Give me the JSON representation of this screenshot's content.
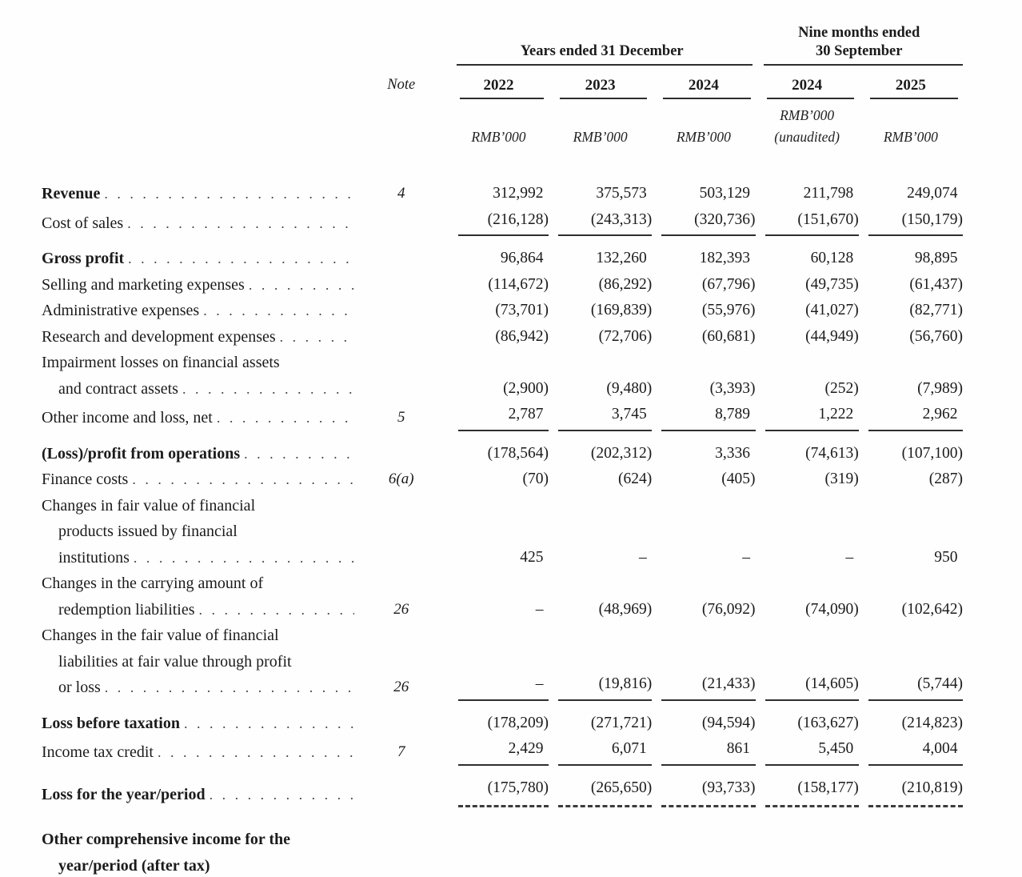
{
  "table": {
    "header": {
      "note_label": "Note",
      "group1_title": "Years ended 31 December",
      "group2_title_lines": [
        "Nine months ended",
        "30 September"
      ],
      "columns": [
        {
          "year": "2022",
          "unit": "RMB’000"
        },
        {
          "year": "2023",
          "unit": "RMB’000"
        },
        {
          "year": "2024",
          "unit": "RMB’000"
        },
        {
          "year": "2024",
          "unit": "RMB’000",
          "subnote": "(unaudited)"
        },
        {
          "year": "2025",
          "unit": "RMB’000"
        }
      ]
    },
    "rows": [
      {
        "label_lines": [
          {
            "text": "Revenue",
            "leader": true
          }
        ],
        "bold": true,
        "note": "4",
        "values": [
          "312,992",
          "375,573",
          "503,129",
          "211,798",
          "249,074"
        ],
        "rule": "none"
      },
      {
        "label_lines": [
          {
            "text": "Cost of sales",
            "leader": true
          }
        ],
        "bold": false,
        "note": "",
        "values": [
          "(216,128)",
          "(243,313)",
          "(320,736)",
          "(151,670)",
          "(150,179)"
        ],
        "rule": "single"
      },
      {
        "label_lines": [
          {
            "text": "Gross profit",
            "leader": true
          }
        ],
        "bold": true,
        "note": "",
        "values": [
          "96,864",
          "132,260",
          "182,393",
          "60,128",
          "98,895"
        ],
        "rule": "none"
      },
      {
        "label_lines": [
          {
            "text": "Selling and marketing expenses",
            "leader": true
          }
        ],
        "bold": false,
        "note": "",
        "values": [
          "(114,672)",
          "(86,292)",
          "(67,796)",
          "(49,735)",
          "(61,437)"
        ],
        "rule": "none"
      },
      {
        "label_lines": [
          {
            "text": "Administrative expenses",
            "leader": true
          }
        ],
        "bold": false,
        "note": "",
        "values": [
          "(73,701)",
          "(169,839)",
          "(55,976)",
          "(41,027)",
          "(82,771)"
        ],
        "rule": "none"
      },
      {
        "label_lines": [
          {
            "text": "Research and development expenses",
            "leader": true
          }
        ],
        "bold": false,
        "note": "",
        "values": [
          "(86,942)",
          "(72,706)",
          "(60,681)",
          "(44,949)",
          "(56,760)"
        ],
        "rule": "none"
      },
      {
        "label_lines": [
          {
            "text": "Impairment losses on financial assets"
          },
          {
            "text": "and contract assets",
            "indent": true,
            "leader": true
          }
        ],
        "bold": false,
        "note": "",
        "values": [
          "(2,900)",
          "(9,480)",
          "(3,393)",
          "(252)",
          "(7,989)"
        ],
        "rule": "none"
      },
      {
        "label_lines": [
          {
            "text": "Other income and loss, net",
            "leader": true
          }
        ],
        "bold": false,
        "note": "5",
        "values": [
          "2,787",
          "3,745",
          "8,789",
          "1,222",
          "2,962"
        ],
        "rule": "single"
      },
      {
        "label_lines": [
          {
            "text": "(Loss)/profit from operations",
            "leader": true
          }
        ],
        "bold": true,
        "note": "",
        "values": [
          "(178,564)",
          "(202,312)",
          "3,336",
          "(74,613)",
          "(107,100)"
        ],
        "rule": "none"
      },
      {
        "label_lines": [
          {
            "text": "Finance costs",
            "leader": true
          }
        ],
        "bold": false,
        "note": "6(a)",
        "values": [
          "(70)",
          "(624)",
          "(405)",
          "(319)",
          "(287)"
        ],
        "rule": "none"
      },
      {
        "label_lines": [
          {
            "text": "Changes in fair value of financial"
          },
          {
            "text": "products issued by financial",
            "indent": true
          },
          {
            "text": "institutions",
            "indent": true,
            "leader": true
          }
        ],
        "bold": false,
        "note": "",
        "values": [
          "425",
          "–",
          "–",
          "–",
          "950"
        ],
        "rule": "none"
      },
      {
        "label_lines": [
          {
            "text": "Changes in the carrying amount of"
          },
          {
            "text": "redemption liabilities",
            "indent": true,
            "leader": true
          }
        ],
        "bold": false,
        "note": "26",
        "values": [
          "–",
          "(48,969)",
          "(76,092)",
          "(74,090)",
          "(102,642)"
        ],
        "rule": "none"
      },
      {
        "label_lines": [
          {
            "text": "Changes in the fair value of financial"
          },
          {
            "text": "liabilities at fair value through profit",
            "indent": true
          },
          {
            "text": "or loss",
            "indent": true,
            "leader": true
          }
        ],
        "bold": false,
        "note": "26",
        "values": [
          "–",
          "(19,816)",
          "(21,433)",
          "(14,605)",
          "(5,744)"
        ],
        "rule": "single"
      },
      {
        "label_lines": [
          {
            "text": "Loss before taxation",
            "leader": true
          }
        ],
        "bold": true,
        "note": "",
        "values": [
          "(178,209)",
          "(271,721)",
          "(94,594)",
          "(163,627)",
          "(214,823)"
        ],
        "rule": "none"
      },
      {
        "label_lines": [
          {
            "text": "Income tax credit",
            "leader": true
          }
        ],
        "bold": false,
        "note": "7",
        "values": [
          "2,429",
          "6,071",
          "861",
          "5,450",
          "4,004"
        ],
        "rule": "single"
      },
      {
        "label_lines": [
          {
            "text": "Loss for the year/period",
            "leader": true
          }
        ],
        "bold": true,
        "note": "",
        "values": [
          "(175,780)",
          "(265,650)",
          "(93,733)",
          "(158,177)",
          "(210,819)"
        ],
        "rule": "dashed"
      },
      {
        "label_lines": [
          {
            "text": "Other comprehensive income for the"
          },
          {
            "text": "year/period (after tax)",
            "indent": true
          }
        ],
        "bold": true,
        "note": "",
        "values": [
          "",
          "",
          "",
          "",
          ""
        ],
        "rule": "none"
      }
    ]
  }
}
